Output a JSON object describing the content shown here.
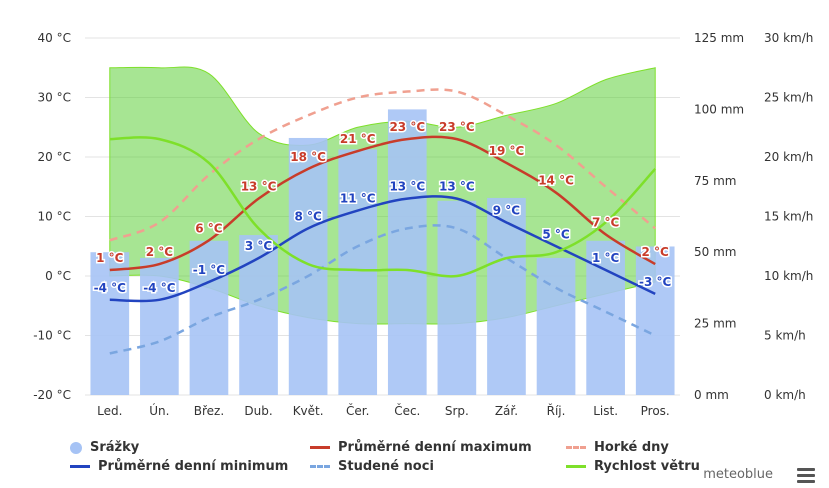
{
  "partial_title": "",
  "brand": "meteoblue",
  "menu_icon": "hamburger-menu-icon",
  "legend": [
    {
      "label": "Srážky",
      "symbol": "dot",
      "color": "#a6c3f5"
    },
    {
      "label": "Průměrné denní maximum",
      "symbol": "line",
      "color": "#c83c2a"
    },
    {
      "label": "Horké dny",
      "symbol": "dash",
      "color": "#f0a090"
    },
    {
      "label": "Průměrné denní minimum",
      "symbol": "line",
      "color": "#2244c0"
    },
    {
      "label": "Studené noci",
      "symbol": "dash",
      "color": "#7aa6e0"
    },
    {
      "label": "Rychlost větru",
      "symbol": "line",
      "color": "#7ee02a"
    }
  ],
  "chart_data": {
    "type": "line",
    "categories": [
      "Led.",
      "Ún.",
      "Břez.",
      "Dub.",
      "Květ.",
      "Čer.",
      "Čec.",
      "Srp.",
      "Zář.",
      "Říj.",
      "List.",
      "Pros."
    ],
    "axes": {
      "temp_ticks": [
        "40 °C",
        "30 °C",
        "20 °C",
        "10 °C",
        "0 °C",
        "-10 °C",
        "-20 °C"
      ],
      "temp_range": [
        -20,
        40
      ],
      "precip_ticks": [
        "125 mm",
        "100 mm",
        "75 mm",
        "50 mm",
        "25 mm",
        "0 mm"
      ],
      "precip_range": [
        0,
        125
      ],
      "wind_ticks": [
        "30 km/h",
        "25 km/h",
        "20 km/h",
        "15 km/h",
        "10 km/h",
        "5 km/h",
        "0 km/h"
      ],
      "wind_range": [
        0,
        30
      ],
      "grid": true
    },
    "series": [
      {
        "name": "Srážky",
        "kind": "bar",
        "axis": "precip",
        "color": "#a6c3f5",
        "values": [
          50,
          48,
          54,
          56,
          90,
          86,
          100,
          68,
          69,
          48,
          54,
          52
        ]
      },
      {
        "name": "Průměrné denní maximum",
        "kind": "line",
        "axis": "temp",
        "color": "#c83c2a",
        "values": [
          1,
          2,
          6,
          13,
          18,
          21,
          23,
          23,
          19,
          14,
          7,
          2
        ],
        "labels": [
          "1 °C",
          "2 °C",
          "6 °C",
          "13 °C",
          "18 °C",
          "21 °C",
          "23 °C",
          "23 °C",
          "19 °C",
          "14 °C",
          "7 °C",
          "2 °C"
        ]
      },
      {
        "name": "Průměrné denní minimum",
        "kind": "line",
        "axis": "temp",
        "color": "#2244c0",
        "values": [
          -4,
          -4,
          -1,
          3,
          8,
          11,
          13,
          13,
          9,
          5,
          1,
          -3
        ],
        "labels": [
          "-4 °C",
          "-4 °C",
          "-1 °C",
          "3 °C",
          "8 °C",
          "11 °C",
          "13 °C",
          "13 °C",
          "9 °C",
          "5 °C",
          "1 °C",
          "-3 °C"
        ]
      },
      {
        "name": "Horké dny",
        "kind": "dash",
        "axis": "temp",
        "color": "#f0a090",
        "values": [
          6,
          9,
          17,
          23,
          27,
          30,
          31,
          31,
          27,
          22,
          15,
          8
        ]
      },
      {
        "name": "Studené noci",
        "kind": "dash",
        "axis": "temp",
        "color": "#7aa6e0",
        "values": [
          -13,
          -11,
          -7,
          -4,
          0,
          5,
          8,
          8,
          3,
          -2,
          -6,
          -10
        ]
      },
      {
        "name": "Rychlost větru",
        "kind": "line",
        "axis": "wind",
        "color": "#7ee02a",
        "values": [
          21.5,
          21.5,
          19.5,
          14,
          11,
          10.5,
          10.5,
          10,
          11.5,
          12,
          14.5,
          19
        ]
      },
      {
        "name": "Rychlost větru (max)",
        "kind": "band_top",
        "axis": "wind",
        "color": "#7ee02a",
        "values": [
          27.5,
          27.5,
          27,
          22,
          21,
          22.5,
          23,
          22.5,
          23.5,
          24.5,
          26.5,
          27.5
        ]
      },
      {
        "name": "Rychlost větru (min)",
        "kind": "band_bottom",
        "axis": "wind",
        "color": "#7ee02a",
        "values": [
          10,
          10,
          9,
          7.5,
          6.5,
          6,
          6,
          6,
          6.5,
          7.5,
          8.5,
          9.5
        ]
      }
    ]
  }
}
